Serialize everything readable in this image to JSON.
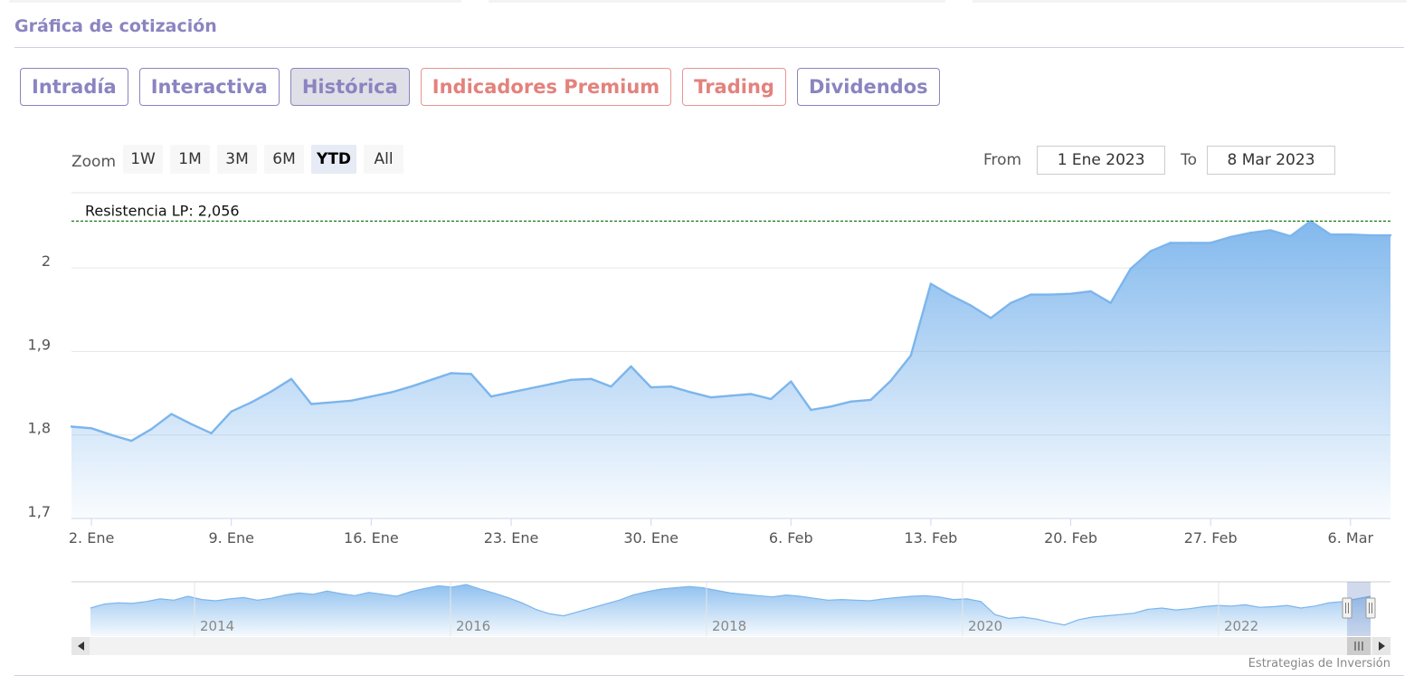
{
  "section": {
    "title": "Gráfica de cotización"
  },
  "tabs": [
    {
      "label": "Intradía",
      "kind": "normal"
    },
    {
      "label": "Interactiva",
      "kind": "normal"
    },
    {
      "label": "Histórica",
      "kind": "active"
    },
    {
      "label": "Indicadores Premium",
      "kind": "premium"
    },
    {
      "label": "Trading",
      "kind": "premium"
    },
    {
      "label": "Dividendos",
      "kind": "normal"
    }
  ],
  "zoom": {
    "label": "Zoom",
    "buttons": [
      "1W",
      "1M",
      "3M",
      "6M",
      "YTD",
      "All"
    ],
    "selected": "YTD"
  },
  "range": {
    "from_label": "From",
    "from_value": "1 Ene 2023",
    "to_label": "To",
    "to_value": "8 Mar 2023"
  },
  "colors": {
    "line": "#7cb5ec",
    "accent": "#8b84c0",
    "premium": "#e3827d",
    "resistance": "#1a7a1a"
  },
  "chart_data": {
    "type": "area",
    "title": "",
    "xlabel": "",
    "ylabel": "",
    "x_ticks": [
      "2. Ene",
      "9. Ene",
      "16. Ene",
      "23. Ene",
      "30. Ene",
      "6. Feb",
      "13. Feb",
      "20. Feb",
      "27. Feb",
      "6. Mar"
    ],
    "y_ticks": [
      "1,7",
      "1,8",
      "1,9",
      "2"
    ],
    "ylim": [
      1.7,
      2.09
    ],
    "x": [
      "2023-01-01",
      "2023-01-02",
      "2023-01-03",
      "2023-01-04",
      "2023-01-05",
      "2023-01-06",
      "2023-01-07",
      "2023-01-08",
      "2023-01-09",
      "2023-01-10",
      "2023-01-11",
      "2023-01-12",
      "2023-01-13",
      "2023-01-14",
      "2023-01-15",
      "2023-01-16",
      "2023-01-17",
      "2023-01-18",
      "2023-01-19",
      "2023-01-20",
      "2023-01-21",
      "2023-01-22",
      "2023-01-23",
      "2023-01-24",
      "2023-01-25",
      "2023-01-26",
      "2023-01-27",
      "2023-01-28",
      "2023-01-29",
      "2023-01-30",
      "2023-01-31",
      "2023-02-01",
      "2023-02-02",
      "2023-02-03",
      "2023-02-04",
      "2023-02-05",
      "2023-02-06",
      "2023-02-07",
      "2023-02-08",
      "2023-02-09",
      "2023-02-10",
      "2023-02-11",
      "2023-02-12",
      "2023-02-13",
      "2023-02-14",
      "2023-02-15",
      "2023-02-16",
      "2023-02-17",
      "2023-02-18",
      "2023-02-19",
      "2023-02-20",
      "2023-02-21",
      "2023-02-22",
      "2023-02-23",
      "2023-02-24",
      "2023-02-25",
      "2023-02-26",
      "2023-02-27",
      "2023-02-28",
      "2023-03-01",
      "2023-03-02",
      "2023-03-03",
      "2023-03-04",
      "2023-03-05",
      "2023-03-06",
      "2023-03-07",
      "2023-03-08"
    ],
    "series": [
      {
        "values": [
          1.81,
          1.808,
          1.8,
          1.793,
          1.807,
          1.825,
          1.813,
          1.802,
          1.828,
          1.839,
          1.852,
          1.867,
          1.837,
          1.839,
          1.841,
          1.846,
          1.851,
          1.858,
          1.866,
          1.874,
          1.873,
          1.846,
          1.851,
          1.856,
          1.861,
          1.866,
          1.867,
          1.858,
          1.882,
          1.857,
          1.858,
          1.851,
          1.845,
          1.847,
          1.849,
          1.843,
          1.864,
          1.83,
          1.834,
          1.84,
          1.842,
          1.865,
          1.895,
          1.981,
          1.967,
          1.955,
          1.94,
          1.958,
          1.968,
          1.968,
          1.969,
          1.972,
          1.958,
          1.999,
          2.02,
          2.03,
          2.03,
          2.03,
          2.037,
          2.042,
          2.045,
          2.038,
          2.056,
          2.04,
          2.04,
          2.039,
          2.039
        ]
      }
    ],
    "annotations": [
      {
        "type": "horizontal_line",
        "y": 2.056,
        "label": "Resistencia LP: 2,056"
      }
    ],
    "grid": true,
    "legend": "none"
  },
  "navigator": {
    "year_labels": [
      "2014",
      "2016",
      "2018",
      "2020",
      "2022"
    ],
    "series_values": [
      1.72,
      1.78,
      1.8,
      1.79,
      1.82,
      1.86,
      1.84,
      1.9,
      1.85,
      1.83,
      1.86,
      1.88,
      1.84,
      1.87,
      1.92,
      1.95,
      1.93,
      1.98,
      1.94,
      1.91,
      1.96,
      1.93,
      1.9,
      1.97,
      2.02,
      2.06,
      2.04,
      2.08,
      2.01,
      1.95,
      1.88,
      1.8,
      1.7,
      1.63,
      1.6,
      1.66,
      1.72,
      1.78,
      1.84,
      1.92,
      1.97,
      2.01,
      2.03,
      2.05,
      2.03,
      1.99,
      1.95,
      1.93,
      1.91,
      1.89,
      1.92,
      1.9,
      1.87,
      1.84,
      1.85,
      1.84,
      1.83,
      1.86,
      1.88,
      1.9,
      1.91,
      1.89,
      1.85,
      1.86,
      1.82,
      1.62,
      1.56,
      1.58,
      1.55,
      1.5,
      1.46,
      1.54,
      1.58,
      1.6,
      1.62,
      1.64,
      1.7,
      1.72,
      1.69,
      1.71,
      1.74,
      1.76,
      1.75,
      1.77,
      1.73,
      1.74,
      1.76,
      1.72,
      1.75,
      1.8,
      1.82,
      1.86,
      1.9
    ]
  },
  "credit": "Estrategias de Inversión"
}
